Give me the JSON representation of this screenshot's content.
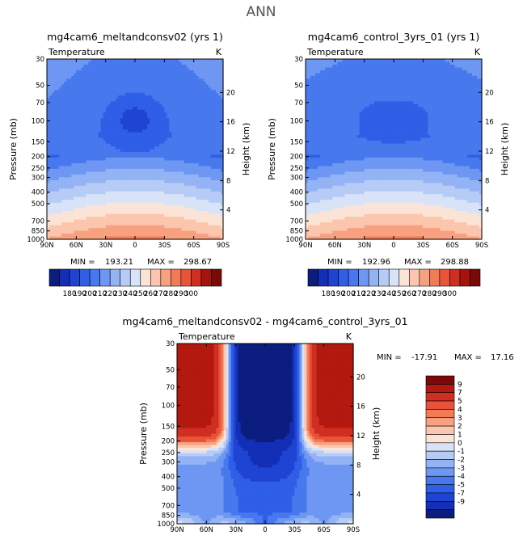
{
  "page_title": "ANN",
  "colors": {
    "temp_scale": [
      "#0b1d7e",
      "#122fb6",
      "#1f44d3",
      "#2f5fe6",
      "#4878ee",
      "#6e97f3",
      "#93b3f5",
      "#b6ccf6",
      "#d8e3f8",
      "#fbe4d6",
      "#fbc6ad",
      "#f7a180",
      "#f27b57",
      "#e8533a",
      "#d12e22",
      "#a5130f",
      "#7a0907"
    ],
    "diff_scale": [
      "#0b1d7e",
      "#122fb6",
      "#1f44d3",
      "#2f5fe6",
      "#4878ee",
      "#6e97f3",
      "#93b3f5",
      "#b6ccf6",
      "#d8e3f8",
      "#fbe4d6",
      "#fbc6ad",
      "#f7a180",
      "#f27b57",
      "#e8533a",
      "#d12e22",
      "#b3190f",
      "#7a0907"
    ]
  },
  "chart_data": [
    {
      "type": "heatmap",
      "title": "mg4cam6_meltandconsv02 (yrs 1)",
      "variable": "Temperature",
      "units": "K",
      "ylabel": "Pressure (mb)",
      "ylabel_right": "Height (km)",
      "x_ticks": [
        "90N",
        "60N",
        "30N",
        "0",
        "30S",
        "60S",
        "90S"
      ],
      "y_ticks": [
        "30",
        "50",
        "70",
        "100",
        "150",
        "200",
        "250",
        "300",
        "400",
        "500",
        "700",
        "850",
        "1000"
      ],
      "height_ticks": [
        "20",
        "16",
        "12",
        "8",
        "4"
      ],
      "stats": {
        "min_label": "MIN =",
        "min": "193.21",
        "max_label": "MAX =",
        "max": "298.67"
      },
      "colorbar_labels": [
        "180",
        "190",
        "200",
        "210",
        "220",
        "230",
        "240",
        "250",
        "260",
        "270",
        "280",
        "290",
        "300"
      ],
      "min_value": 193.21,
      "max_value": 298.67
    },
    {
      "type": "heatmap",
      "title": "mg4cam6_control_3yrs_01 (yrs 1)",
      "variable": "Temperature",
      "units": "K",
      "ylabel": "Pressure (mb)",
      "ylabel_right": "Height (km)",
      "x_ticks": [
        "90N",
        "60N",
        "30N",
        "0",
        "30S",
        "60S",
        "90S"
      ],
      "y_ticks": [
        "30",
        "50",
        "70",
        "100",
        "150",
        "200",
        "250",
        "300",
        "400",
        "500",
        "700",
        "850",
        "1000"
      ],
      "height_ticks": [
        "20",
        "16",
        "12",
        "8",
        "4"
      ],
      "stats": {
        "min_label": "MIN =",
        "min": "192.96",
        "max_label": "MAX =",
        "max": "298.88"
      },
      "colorbar_labels": [
        "180",
        "190",
        "200",
        "210",
        "220",
        "230",
        "240",
        "250",
        "260",
        "270",
        "280",
        "290",
        "300"
      ],
      "min_value": 192.96,
      "max_value": 298.88
    },
    {
      "type": "heatmap",
      "title": "mg4cam6_meltandconsv02 - mg4cam6_control_3yrs_01",
      "variable": "Temperature",
      "units": "K",
      "ylabel": "Pressure (mb)",
      "ylabel_right": "Height (km)",
      "x_ticks": [
        "90N",
        "60N",
        "30N",
        "0",
        "30S",
        "60S",
        "90S"
      ],
      "y_ticks": [
        "30",
        "50",
        "70",
        "100",
        "150",
        "200",
        "250",
        "300",
        "400",
        "500",
        "700",
        "850",
        "1000"
      ],
      "height_ticks": [
        "20",
        "16",
        "12",
        "8",
        "4"
      ],
      "stats": {
        "min_label": "MIN =",
        "min": "-17.91",
        "max_label": "MAX =",
        "max": "17.16"
      },
      "colorbar_labels": [
        "9",
        "7",
        "5",
        "4",
        "3",
        "2",
        "1",
        "0",
        "-1",
        "-2",
        "-3",
        "-4",
        "-5",
        "-7",
        "-9"
      ],
      "min_value": -17.91,
      "max_value": 17.16
    }
  ]
}
